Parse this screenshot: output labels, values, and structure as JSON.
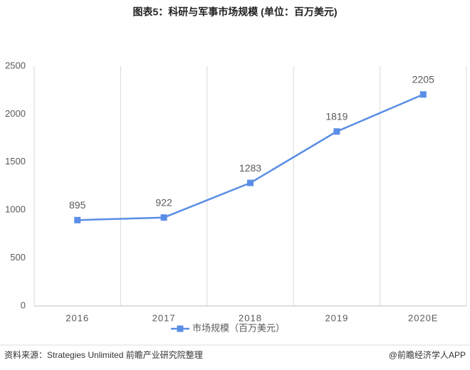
{
  "chart_data": {
    "type": "line",
    "title": "图表5：科研与军事市场规模 (单位：百万美元)",
    "categories": [
      "2016",
      "2017",
      "2018",
      "2019",
      "2020E"
    ],
    "series": [
      {
        "name": "市场规模（百万美元）",
        "color": "#5a8ee6",
        "values": [
          895,
          922,
          1283,
          1819,
          2205
        ]
      }
    ],
    "ylim": [
      0,
      2500
    ],
    "yticks": [
      0,
      500,
      1000,
      1500,
      2000,
      2500
    ],
    "grid": true,
    "data_labels": true,
    "legend": "bottom",
    "source": "资料来源：Strategies Unlimited 前瞻产业研究院整理",
    "credit": "@前瞻经济学人APP"
  }
}
